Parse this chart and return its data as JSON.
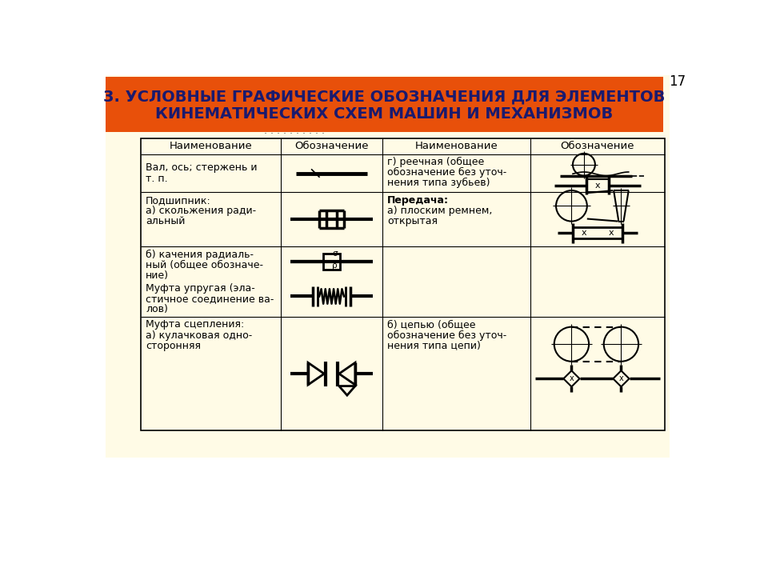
{
  "title_line1": "3. УСЛОВНЫЕ ГРАФИЧЕСКИЕ ОБОЗНАЧЕНИЯ ДЛЯ ЭЛЕМЕНТОВ",
  "title_line2": "КИНЕМАТИЧЕСКИХ СХЕМ МАШИН И МЕХАНИЗМОВ",
  "title_bg": "#E8500A",
  "title_text_color": "#1a1a6e",
  "page_bg": "#ffffff",
  "table_bg": "#FFFDE0",
  "header_label1": "Наименование",
  "header_label2": "Обозначение",
  "header_label3": "Наименование",
  "header_label4": "Обозначение",
  "page_number": "17",
  "subtitle_visible": "· · · · · · · · · ·"
}
